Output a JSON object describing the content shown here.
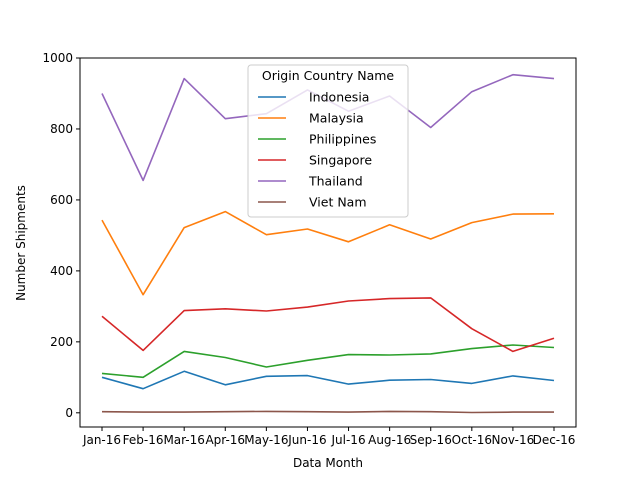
{
  "chart_data": {
    "type": "line",
    "title": "",
    "xlabel": "Data Month",
    "ylabel": "Number Shipments",
    "ylim": [
      -40,
      1000
    ],
    "yticks": [
      0,
      200,
      400,
      600,
      800,
      1000
    ],
    "grid": false,
    "legend": {
      "title": "Origin Country Name",
      "placement": "upper center"
    },
    "categories": [
      "Jan-16",
      "Feb-16",
      "Mar-16",
      "Apr-16",
      "May-16",
      "Jun-16",
      "Jul-16",
      "Aug-16",
      "Sep-16",
      "Oct-16",
      "Nov-16",
      "Dec-16"
    ],
    "series": [
      {
        "name": "Indonesia",
        "color": "#1f77b4",
        "values": [
          100,
          68,
          117,
          79,
          103,
          105,
          81,
          92,
          94,
          83,
          104,
          91
        ]
      },
      {
        "name": "Malaysia",
        "color": "#ff7f0e",
        "values": [
          543,
          333,
          522,
          567,
          502,
          518,
          482,
          530,
          490,
          536,
          560,
          561
        ]
      },
      {
        "name": "Philippines",
        "color": "#2ca02c",
        "values": [
          111,
          100,
          173,
          156,
          129,
          148,
          164,
          163,
          166,
          181,
          191,
          184
        ]
      },
      {
        "name": "Singapore",
        "color": "#d62728",
        "values": [
          272,
          176,
          288,
          293,
          287,
          298,
          315,
          322,
          324,
          237,
          173,
          210
        ]
      },
      {
        "name": "Thailand",
        "color": "#9467bd",
        "values": [
          900,
          655,
          942,
          829,
          843,
          910,
          850,
          893,
          804,
          905,
          953,
          942
        ]
      },
      {
        "name": "Viet Nam",
        "color": "#8c564b",
        "values": [
          3,
          2,
          2,
          3,
          4,
          3,
          2,
          4,
          3,
          1,
          2,
          2
        ]
      }
    ]
  }
}
